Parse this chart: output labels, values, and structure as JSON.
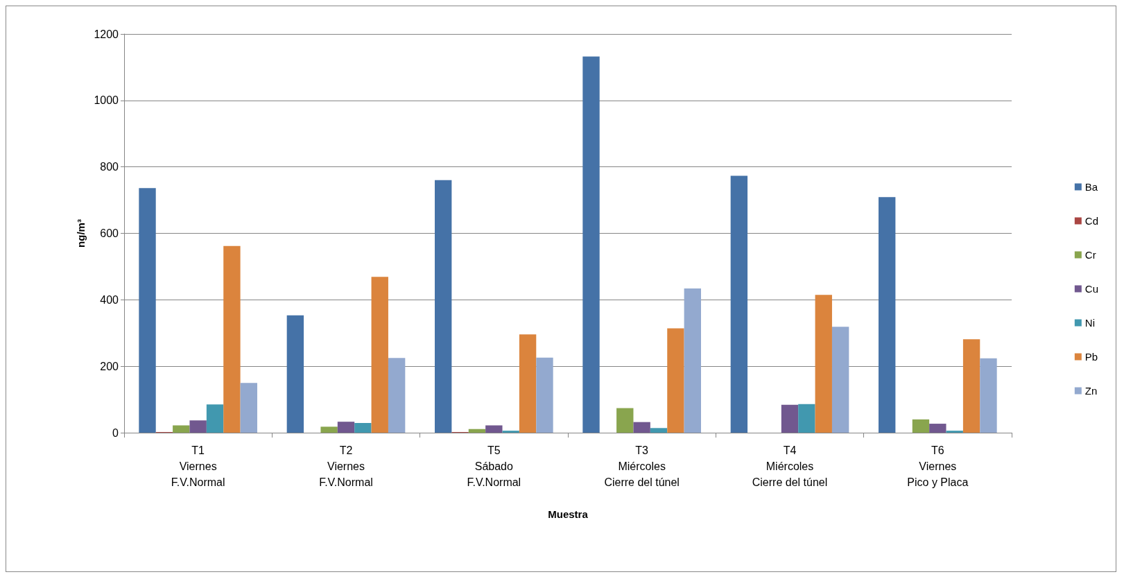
{
  "chart_data": {
    "type": "bar",
    "xlabel": "Muestra",
    "ylabel": "ng/m³",
    "categories": [
      "T1\nViernes\nF.V.Normal",
      "T2\nViernes\nF.V.Normal",
      "T5\nSábado\nF.V.Normal",
      "T3\nMiércoles\nCierre del túnel",
      "T4\nMiércoles\nCierre del túnel",
      "T6\nViernes\nPico y Placa"
    ],
    "series": [
      {
        "name": "Ba",
        "color": "#4572a7",
        "values": [
          736,
          353,
          760,
          1132,
          773,
          709
        ]
      },
      {
        "name": "Cd",
        "color": "#aa4643",
        "values": [
          2,
          null,
          2,
          0,
          null,
          0
        ]
      },
      {
        "name": "Cr",
        "color": "#89a54e",
        "values": [
          22,
          18,
          11,
          74,
          0,
          40
        ]
      },
      {
        "name": "Cu",
        "color": "#71588f",
        "values": [
          37,
          33,
          22,
          32,
          84,
          27
        ]
      },
      {
        "name": "Ni",
        "color": "#4198af",
        "values": [
          85,
          29,
          6,
          14,
          86,
          6
        ]
      },
      {
        "name": "Pb",
        "color": "#db843d",
        "values": [
          562,
          469,
          296,
          314,
          415,
          281
        ]
      },
      {
        "name": "Zn",
        "color": "#93a9cf",
        "values": [
          150,
          225,
          226,
          434,
          319,
          224
        ]
      }
    ],
    "ylim": [
      0,
      1200
    ],
    "yticks": [
      0,
      200,
      400,
      600,
      800,
      1000,
      1200
    ],
    "grid": "y",
    "legend": "right"
  }
}
